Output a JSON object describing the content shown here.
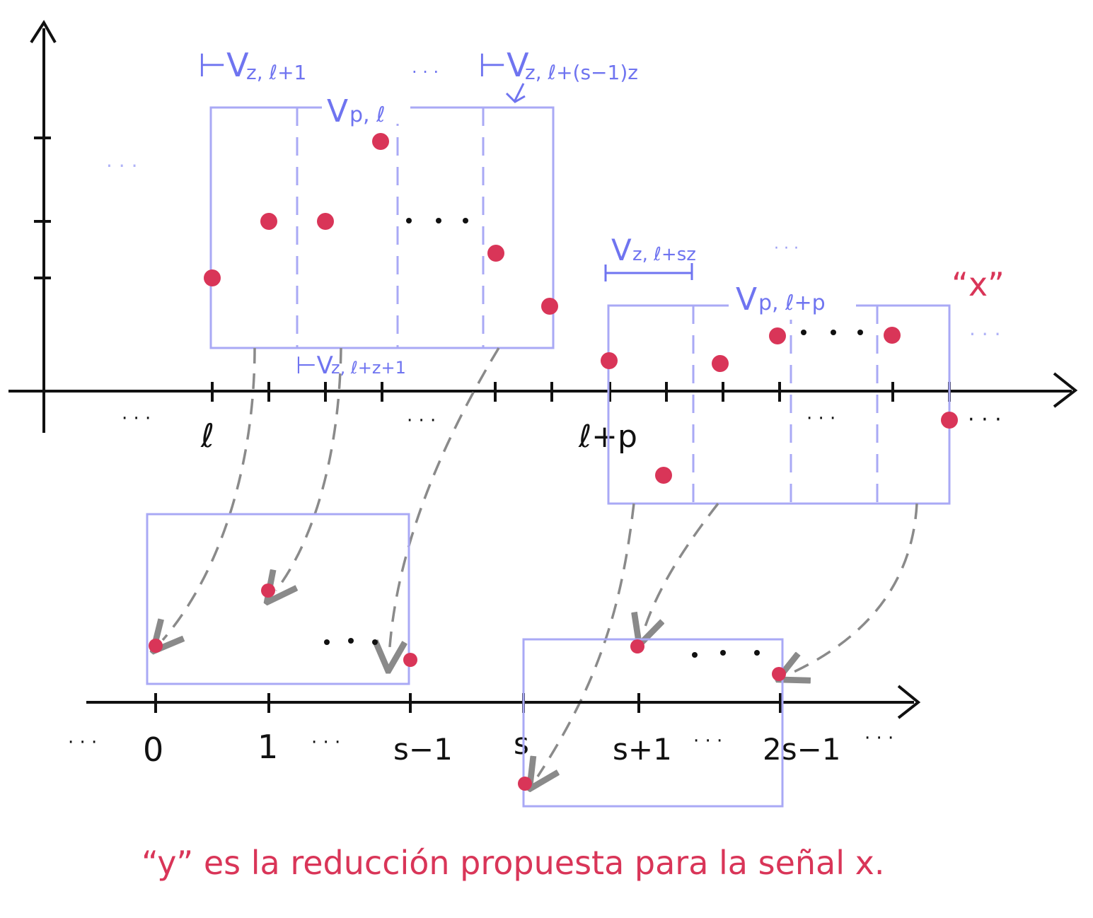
{
  "colors": {
    "axis": "#111111",
    "window": "#a9a9f5",
    "window_label": "#6f74f0",
    "point": "#d93558",
    "arrow": "#8a8a8a",
    "caption": "#d93558"
  },
  "labels": {
    "vz_l": "⊢V",
    "vz_l_sub": "z, ℓ+1",
    "vz_last": "⊢V",
    "vz_last_sub": "z, ℓ+(s−1)z",
    "vp_l": "V",
    "vp_l_sub": "p, ℓ",
    "vz_lz": "⊢V",
    "vz_lz_sub": "z, ℓ+z+1",
    "vz_lsz": "V",
    "vz_lsz_sub": "z, ℓ+sz",
    "vp_lp": "V",
    "vp_lp_sub": "p, ℓ+p",
    "signal_x": "“x”",
    "dots": "· · ·"
  },
  "top_axis_ticks": {
    "l": "ℓ",
    "lp": "ℓ+p"
  },
  "bottom_axis_ticks": {
    "t0": "0",
    "t1": "1",
    "ts1": "s−1",
    "ts": "s",
    "tsp1": "s+1",
    "t2s1": "2s−1"
  },
  "caption": "“y” es la reducción propuesta para la señal x."
}
